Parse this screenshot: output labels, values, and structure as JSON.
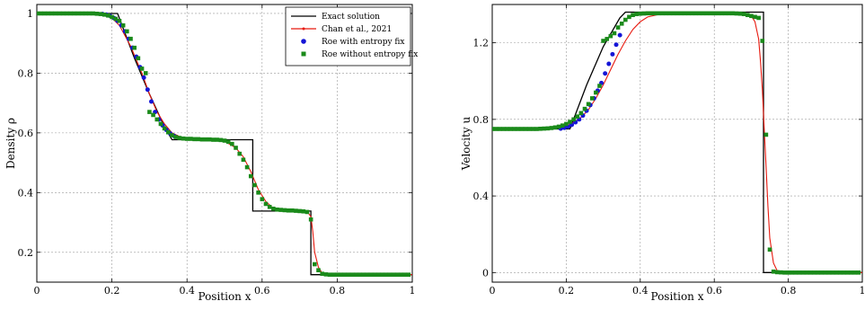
{
  "colors": {
    "exact": "#000000",
    "chan": "#e8190e",
    "roe_fix": "#1515d6",
    "roe_nofix": "#1a8a1a",
    "grid": "#9a9a9a"
  },
  "legend": {
    "exact": "Exact solution",
    "chan": "Chan et al., 2021",
    "roe_fix": "Roe with entropy fix",
    "roe_nofix": "Roe without entropy fix"
  },
  "chart_data": [
    {
      "type": "line",
      "xlabel": "Position x",
      "ylabel": "Density ρ",
      "xlim": [
        0,
        1
      ],
      "ylim": [
        0.1,
        1.03
      ],
      "xticks": [
        0,
        0.2,
        0.4,
        0.6,
        0.8,
        1
      ],
      "xtick_labels": [
        "0",
        "0.2",
        "0.4",
        "0.6",
        "0.8",
        "1"
      ],
      "yticks": [
        0.2,
        0.4,
        0.6,
        0.8,
        1
      ],
      "ytick_labels": [
        "0.2",
        "0.4",
        "0.6",
        "0.8",
        "1"
      ],
      "grid": true,
      "legend_position": "top-right",
      "series": [
        {
          "name": "Exact solution",
          "key": "exact",
          "x": [
            0,
            0.215,
            0.26,
            0.3,
            0.34,
            0.36,
            0.575,
            0.575,
            0.73,
            0.73,
            1.0
          ],
          "y": [
            1.0,
            1.0,
            0.85,
            0.73,
            0.62,
            0.577,
            0.577,
            0.338,
            0.338,
            0.125,
            0.125
          ]
        },
        {
          "name": "Chan et al., 2021",
          "key": "chan",
          "x": [
            0,
            0.17,
            0.2,
            0.22,
            0.25,
            0.28,
            0.3,
            0.32,
            0.34,
            0.36,
            0.38,
            0.4,
            0.45,
            0.5,
            0.53,
            0.55,
            0.57,
            0.59,
            0.61,
            0.63,
            0.66,
            0.7,
            0.72,
            0.73,
            0.735,
            0.74,
            0.75,
            0.76,
            0.78,
            1.0
          ],
          "y": [
            1.0,
            0.997,
            0.985,
            0.96,
            0.89,
            0.8,
            0.73,
            0.67,
            0.63,
            0.6,
            0.588,
            0.582,
            0.578,
            0.572,
            0.55,
            0.52,
            0.47,
            0.41,
            0.37,
            0.347,
            0.341,
            0.339,
            0.336,
            0.32,
            0.27,
            0.2,
            0.15,
            0.13,
            0.125,
            0.125
          ]
        },
        {
          "name": "Roe with entropy fix",
          "key": "roe_fix",
          "x": [
            0.175,
            0.185,
            0.195,
            0.205,
            0.215,
            0.225,
            0.235,
            0.245,
            0.255,
            0.265,
            0.275,
            0.285,
            0.295,
            0.305,
            0.315,
            0.325,
            0.335,
            0.345,
            0.355,
            0.365
          ],
          "y": [
            0.998,
            0.996,
            0.992,
            0.985,
            0.975,
            0.96,
            0.94,
            0.915,
            0.885,
            0.855,
            0.82,
            0.785,
            0.745,
            0.705,
            0.67,
            0.645,
            0.625,
            0.61,
            0.598,
            0.59
          ]
        },
        {
          "name": "Roe without entropy fix",
          "key": "roe_nofix",
          "x": [
            0,
            0.01,
            0.02,
            0.03,
            0.04,
            0.05,
            0.06,
            0.07,
            0.08,
            0.09,
            0.1,
            0.11,
            0.12,
            0.13,
            0.14,
            0.15,
            0.16,
            0.17,
            0.18,
            0.19,
            0.2,
            0.21,
            0.22,
            0.23,
            0.24,
            0.25,
            0.26,
            0.27,
            0.28,
            0.29,
            0.3,
            0.31,
            0.32,
            0.33,
            0.34,
            0.35,
            0.36,
            0.37,
            0.38,
            0.39,
            0.4,
            0.41,
            0.42,
            0.43,
            0.44,
            0.45,
            0.46,
            0.47,
            0.48,
            0.49,
            0.5,
            0.51,
            0.52,
            0.53,
            0.54,
            0.55,
            0.56,
            0.57,
            0.58,
            0.59,
            0.6,
            0.61,
            0.62,
            0.63,
            0.64,
            0.65,
            0.66,
            0.67,
            0.68,
            0.69,
            0.7,
            0.71,
            0.72,
            0.73,
            0.74,
            0.75,
            0.76,
            0.77,
            0.78,
            0.79,
            0.8,
            0.81,
            0.82,
            0.83,
            0.84,
            0.85,
            0.86,
            0.87,
            0.88,
            0.89,
            0.9,
            0.91,
            0.92,
            0.93,
            0.94,
            0.95,
            0.96,
            0.97,
            0.98,
            0.99
          ],
          "y": [
            1.0,
            1.0,
            1.0,
            1.0,
            1.0,
            1.0,
            1.0,
            1.0,
            1.0,
            1.0,
            1.0,
            1.0,
            1.0,
            1.0,
            1.0,
            1.0,
            0.999,
            0.998,
            0.996,
            0.993,
            0.988,
            0.982,
            0.975,
            0.96,
            0.94,
            0.915,
            0.885,
            0.85,
            0.815,
            0.8,
            0.67,
            0.66,
            0.645,
            0.63,
            0.615,
            0.602,
            0.592,
            0.586,
            0.583,
            0.581,
            0.58,
            0.58,
            0.579,
            0.579,
            0.578,
            0.578,
            0.578,
            0.577,
            0.577,
            0.576,
            0.574,
            0.57,
            0.563,
            0.55,
            0.53,
            0.51,
            0.485,
            0.455,
            0.425,
            0.4,
            0.378,
            0.362,
            0.352,
            0.346,
            0.343,
            0.342,
            0.341,
            0.34,
            0.34,
            0.339,
            0.338,
            0.337,
            0.335,
            0.31,
            0.16,
            0.14,
            0.128,
            0.126,
            0.125,
            0.125,
            0.125,
            0.125,
            0.125,
            0.125,
            0.125,
            0.125,
            0.125,
            0.125,
            0.125,
            0.125,
            0.125,
            0.125,
            0.125,
            0.125,
            0.125,
            0.125,
            0.125,
            0.125,
            0.125,
            0.125
          ]
        }
      ]
    },
    {
      "type": "line",
      "xlabel": "Position x",
      "ylabel": "Velocity u",
      "xlim": [
        0,
        1
      ],
      "ylim": [
        -0.05,
        1.4
      ],
      "xticks": [
        0,
        0.2,
        0.4,
        0.6,
        0.8,
        1
      ],
      "xtick_labels": [
        "0",
        "0.2",
        "0.4",
        "0.6",
        "0.8",
        "1"
      ],
      "yticks": [
        0,
        0.4,
        0.8,
        1.2
      ],
      "ytick_labels": [
        "0",
        "0.4",
        "0.8",
        "1.2"
      ],
      "grid": true,
      "series": [
        {
          "name": "Exact solution",
          "key": "exact",
          "x": [
            0,
            0.21,
            0.255,
            0.3,
            0.345,
            0.36,
            0.733,
            0.733,
            1.0
          ],
          "y": [
            0.75,
            0.75,
            0.98,
            1.18,
            1.33,
            1.36,
            1.36,
            0.0,
            0.0
          ]
        },
        {
          "name": "Chan et al., 2021",
          "key": "chan",
          "x": [
            0,
            0.15,
            0.18,
            0.2,
            0.22,
            0.24,
            0.26,
            0.28,
            0.3,
            0.32,
            0.34,
            0.36,
            0.38,
            0.4,
            0.42,
            0.45,
            0.5,
            0.6,
            0.68,
            0.7,
            0.71,
            0.72,
            0.725,
            0.73,
            0.735,
            0.74,
            0.745,
            0.75,
            0.76,
            0.77,
            0.78,
            1.0
          ],
          "y": [
            0.75,
            0.751,
            0.755,
            0.765,
            0.785,
            0.81,
            0.85,
            0.91,
            0.98,
            1.06,
            1.14,
            1.21,
            1.27,
            1.31,
            1.335,
            1.348,
            1.352,
            1.352,
            1.35,
            1.34,
            1.31,
            1.22,
            1.1,
            0.95,
            0.75,
            0.55,
            0.35,
            0.18,
            0.05,
            0.01,
            0.0,
            0.0
          ]
        },
        {
          "name": "Roe with entropy fix",
          "key": "roe_fix",
          "x": [
            0.185,
            0.195,
            0.205,
            0.215,
            0.225,
            0.235,
            0.245,
            0.255,
            0.265,
            0.275,
            0.285,
            0.295,
            0.305,
            0.315,
            0.325,
            0.335,
            0.345
          ],
          "y": [
            0.752,
            0.756,
            0.762,
            0.772,
            0.785,
            0.8,
            0.82,
            0.845,
            0.875,
            0.91,
            0.95,
            0.99,
            1.04,
            1.09,
            1.14,
            1.19,
            1.24
          ]
        },
        {
          "name": "Roe without entropy fix",
          "key": "roe_nofix",
          "x": [
            0,
            0.01,
            0.02,
            0.03,
            0.04,
            0.05,
            0.06,
            0.07,
            0.08,
            0.09,
            0.1,
            0.11,
            0.12,
            0.13,
            0.14,
            0.15,
            0.16,
            0.17,
            0.18,
            0.19,
            0.2,
            0.21,
            0.22,
            0.23,
            0.24,
            0.25,
            0.26,
            0.27,
            0.28,
            0.29,
            0.3,
            0.31,
            0.32,
            0.33,
            0.34,
            0.35,
            0.36,
            0.37,
            0.38,
            0.39,
            0.4,
            0.41,
            0.42,
            0.43,
            0.44,
            0.45,
            0.46,
            0.47,
            0.48,
            0.49,
            0.5,
            0.51,
            0.52,
            0.53,
            0.54,
            0.55,
            0.56,
            0.57,
            0.58,
            0.59,
            0.6,
            0.61,
            0.62,
            0.63,
            0.64,
            0.65,
            0.66,
            0.67,
            0.68,
            0.69,
            0.7,
            0.71,
            0.72,
            0.73,
            0.74,
            0.75,
            0.76,
            0.77,
            0.78,
            0.79,
            0.8,
            0.81,
            0.82,
            0.83,
            0.84,
            0.85,
            0.86,
            0.87,
            0.88,
            0.89,
            0.9,
            0.91,
            0.92,
            0.93,
            0.94,
            0.95,
            0.96,
            0.97,
            0.98,
            0.99
          ],
          "y": [
            0.75,
            0.75,
            0.75,
            0.75,
            0.75,
            0.75,
            0.75,
            0.75,
            0.75,
            0.75,
            0.75,
            0.75,
            0.75,
            0.751,
            0.752,
            0.753,
            0.755,
            0.758,
            0.762,
            0.768,
            0.776,
            0.787,
            0.8,
            0.815,
            0.833,
            0.855,
            0.88,
            0.91,
            0.94,
            0.975,
            1.21,
            1.22,
            1.235,
            1.25,
            1.28,
            1.3,
            1.32,
            1.335,
            1.345,
            1.35,
            1.352,
            1.353,
            1.354,
            1.354,
            1.354,
            1.354,
            1.354,
            1.354,
            1.354,
            1.354,
            1.354,
            1.354,
            1.354,
            1.354,
            1.354,
            1.354,
            1.354,
            1.354,
            1.354,
            1.354,
            1.354,
            1.354,
            1.354,
            1.354,
            1.354,
            1.354,
            1.353,
            1.352,
            1.35,
            1.345,
            1.34,
            1.335,
            1.33,
            1.21,
            0.72,
            0.12,
            0.005,
            0.002,
            0.001,
            0.0,
            0.0,
            0.0,
            0.0,
            0.0,
            0.0,
            0.0,
            0.0,
            0.0,
            0.0,
            0.0,
            0.0,
            0.0,
            0.0,
            0.0,
            0.0,
            0.0,
            0.0,
            0.0,
            0.0,
            0.0
          ]
        }
      ]
    }
  ]
}
